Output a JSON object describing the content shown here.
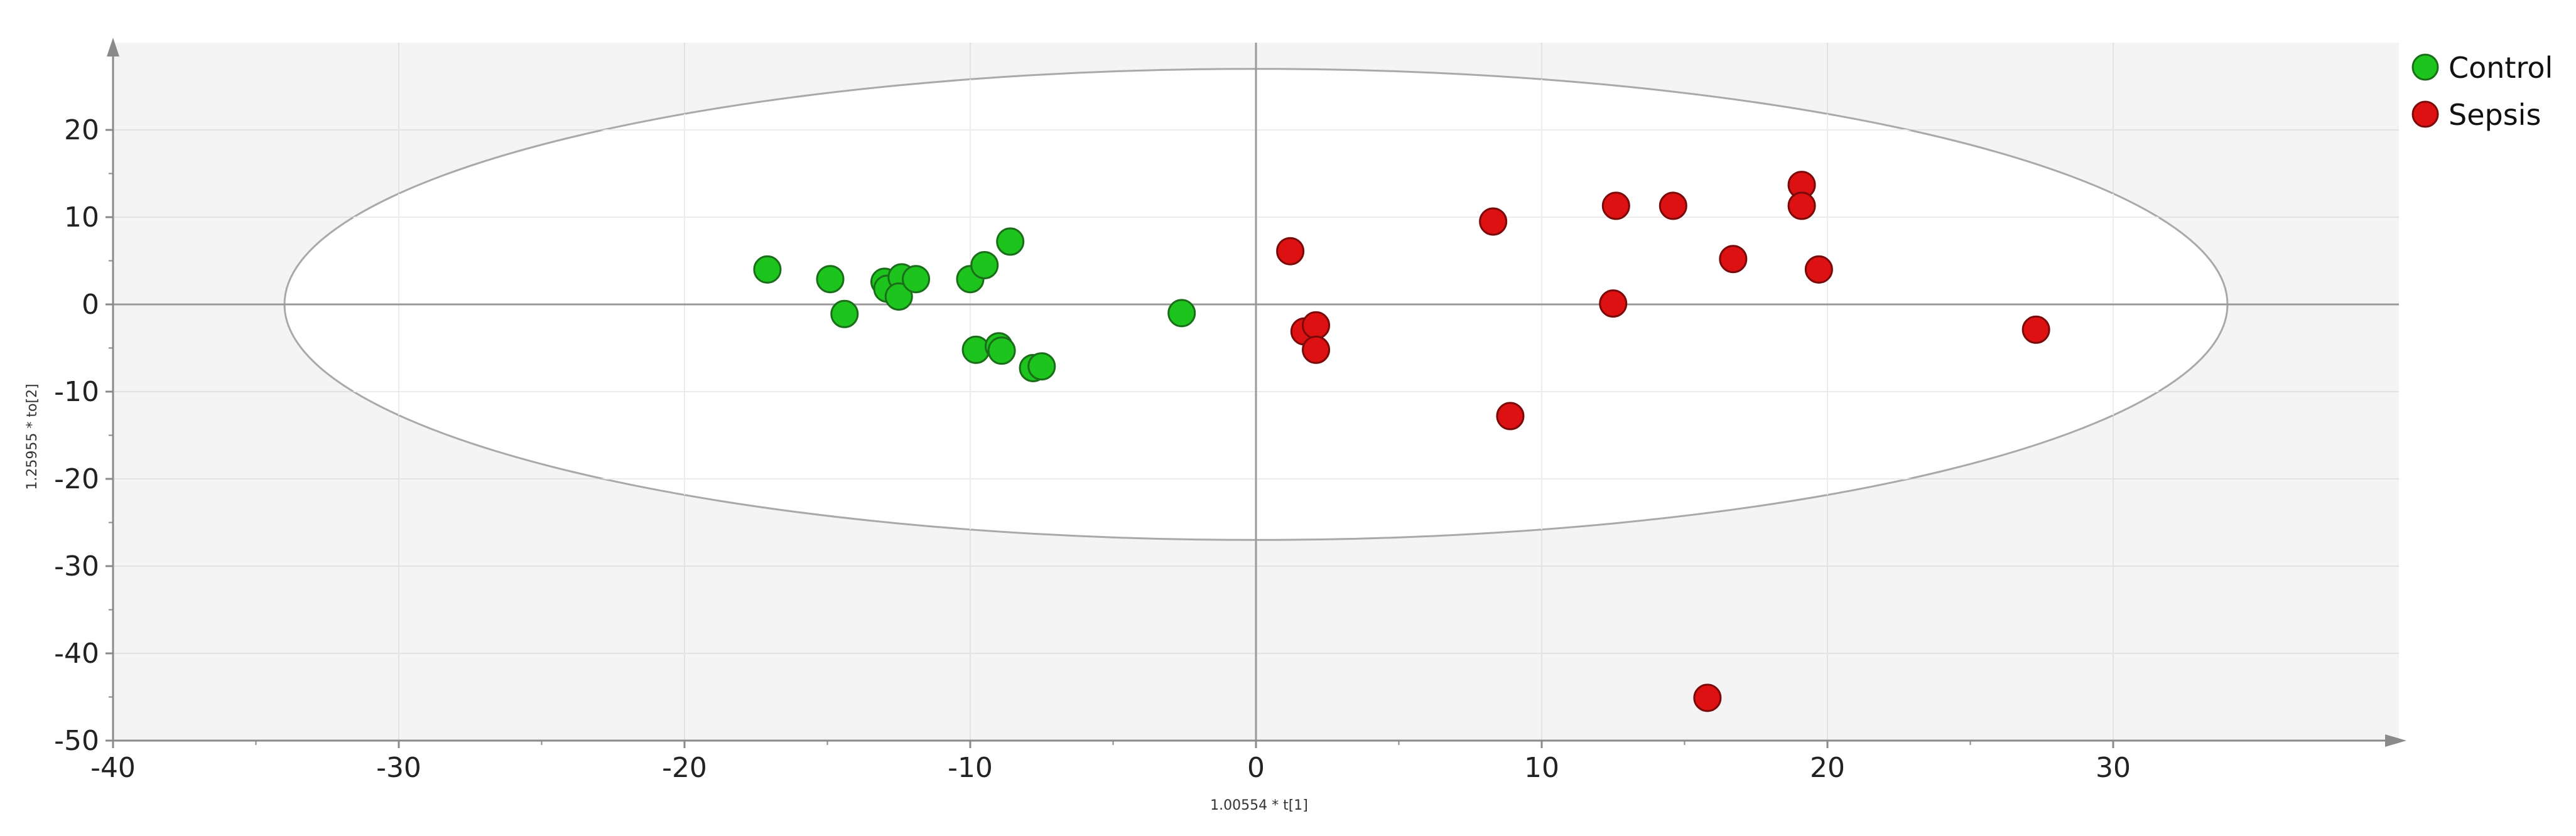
{
  "chart_data": {
    "type": "scatter",
    "title": "",
    "xlabel": "1.00554 * t[1]",
    "ylabel": "1.25955 * to[2]",
    "xlim": [
      -40,
      40
    ],
    "ylim": [
      -50,
      30
    ],
    "x_ticks": [
      -40,
      -30,
      -20,
      -10,
      0,
      10,
      20,
      30
    ],
    "y_ticks": [
      -50,
      -40,
      -30,
      -20,
      -10,
      0,
      10,
      20
    ],
    "x_tick_labels": [
      "-40",
      "-30",
      "-20",
      "-10",
      "0",
      "10",
      "20",
      "30"
    ],
    "y_tick_labels": [
      "-50",
      "-40",
      "-30",
      "-20",
      "-10",
      "0",
      "10",
      "20"
    ],
    "grid": true,
    "legend_position": "top-right",
    "confidence_ellipse": {
      "center": [
        0,
        0
      ],
      "rx": 34,
      "ry": 27
    },
    "series": [
      {
        "name": "Control",
        "color": "#1ec41e",
        "points": [
          [
            -17.1,
            4.0
          ],
          [
            -14.9,
            2.9
          ],
          [
            -14.4,
            -1.1
          ],
          [
            -13.0,
            2.6
          ],
          [
            -12.9,
            1.8
          ],
          [
            -12.4,
            3.1
          ],
          [
            -12.5,
            0.9
          ],
          [
            -11.9,
            2.9
          ],
          [
            -10.0,
            2.9
          ],
          [
            -9.5,
            4.5
          ],
          [
            -8.6,
            7.2
          ],
          [
            -9.8,
            -5.2
          ],
          [
            -9.0,
            -4.8
          ],
          [
            -8.9,
            -5.3
          ],
          [
            -7.8,
            -7.3
          ],
          [
            -7.5,
            -7.1
          ],
          [
            -2.6,
            -1.0
          ]
        ]
      },
      {
        "name": "Sepsis",
        "color": "#dd1111",
        "points": [
          [
            1.2,
            6.1
          ],
          [
            1.7,
            -3.1
          ],
          [
            2.1,
            -2.4
          ],
          [
            2.1,
            -5.2
          ],
          [
            8.3,
            9.5
          ],
          [
            8.9,
            -12.8
          ],
          [
            12.6,
            11.3
          ],
          [
            12.5,
            0.1
          ],
          [
            14.6,
            11.3
          ],
          [
            16.7,
            5.2
          ],
          [
            15.8,
            -45.1
          ],
          [
            19.1,
            13.7
          ],
          [
            19.1,
            11.3
          ],
          [
            19.7,
            4.0
          ],
          [
            27.3,
            -2.9
          ]
        ]
      }
    ]
  }
}
